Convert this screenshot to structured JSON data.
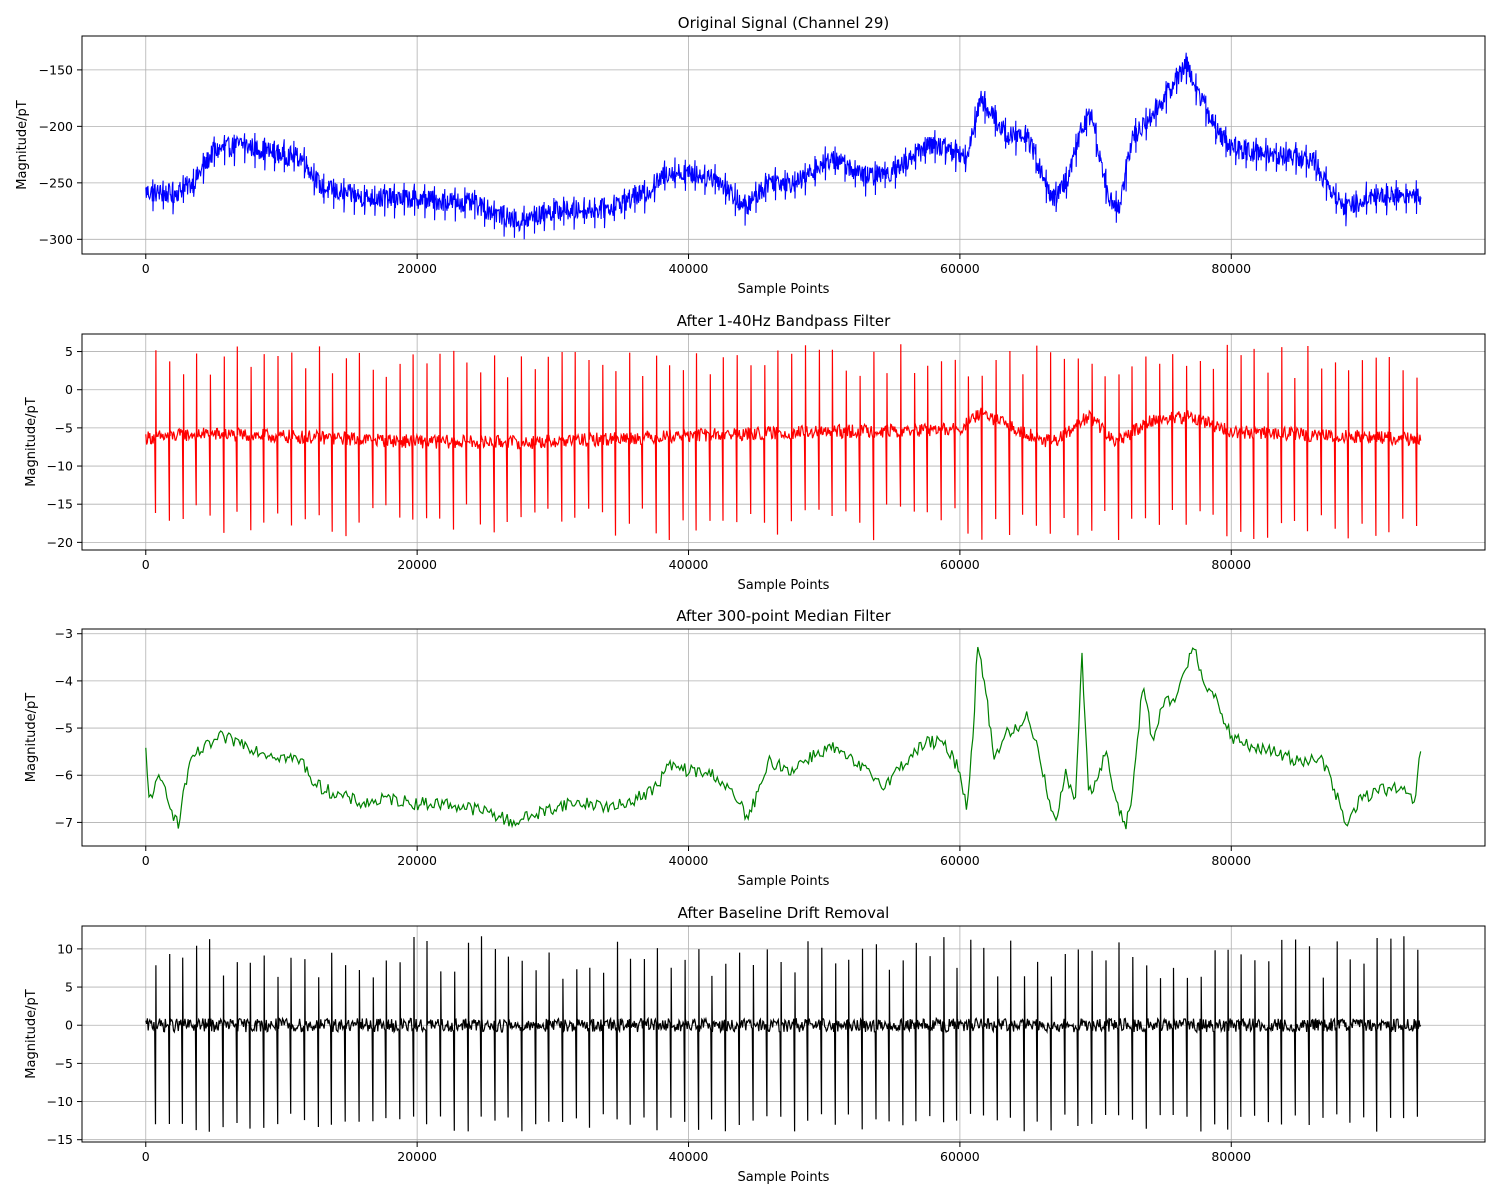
{
  "chart_data": [
    {
      "type": "line",
      "title": "Original Signal (Channel 29)",
      "xlabel": "Sample Points",
      "ylabel": "Magnitude/pT",
      "color": "#0000ff",
      "xlim": [
        -4700,
        98700
      ],
      "ylim": [
        -313,
        -120
      ],
      "xticks": [
        0,
        20000,
        40000,
        60000,
        80000
      ],
      "yticks": [
        -150,
        -200,
        -250,
        -300
      ],
      "ytick_labels": [
        "−150",
        "−200",
        "−250",
        "−300"
      ],
      "grid": true,
      "baseline": {
        "x": [
          0,
          2000,
          3500,
          5000,
          7000,
          10000,
          11500,
          13000,
          16000,
          20000,
          24000,
          27500,
          30000,
          34000,
          37000,
          38500,
          42000,
          44200,
          46000,
          48000,
          50500,
          53000,
          55000,
          58000,
          60500,
          61500,
          63500,
          65000,
          66800,
          68000,
          69000,
          69700,
          71000,
          71800,
          72700,
          74500,
          76700,
          78500,
          80000,
          84000,
          86000,
          87500,
          88500,
          90000,
          94000
        ],
        "y": [
          -258,
          -260,
          -250,
          -222,
          -216,
          -225,
          -228,
          -255,
          -263,
          -264,
          -268,
          -285,
          -275,
          -273,
          -258,
          -240,
          -245,
          -272,
          -248,
          -250,
          -228,
          -245,
          -240,
          -215,
          -228,
          -175,
          -208,
          -210,
          -265,
          -245,
          -200,
          -190,
          -265,
          -270,
          -210,
          -185,
          -145,
          -195,
          -220,
          -226,
          -230,
          -258,
          -273,
          -262,
          -261
        ]
      },
      "noise_amplitude": 9,
      "beat_spacing": 740,
      "spike_up": 14,
      "spike_down": 18
    },
    {
      "type": "line",
      "title": "After 1-40Hz Bandpass Filter",
      "xlabel": "Sample Points",
      "ylabel": "Magnitude/pT",
      "color": "#ff0000",
      "xlim": [
        -4700,
        98700
      ],
      "ylim": [
        -21,
        7.3
      ],
      "xticks": [
        0,
        20000,
        40000,
        60000,
        80000
      ],
      "yticks": [
        5,
        0,
        -5,
        -10,
        -15,
        -20
      ],
      "ytick_labels": [
        "5",
        "0",
        "−5",
        "−10",
        "−15",
        "−20"
      ],
      "grid": true,
      "baseline": {
        "x": [
          0,
          4000,
          12000,
          20000,
          28000,
          40000,
          50000,
          60000,
          61500,
          64000,
          66800,
          69500,
          71500,
          74000,
          77000,
          80000,
          94000
        ],
        "y": [
          -6.3,
          -5.8,
          -6.2,
          -6.8,
          -6.9,
          -6.0,
          -5.5,
          -5.2,
          -3.2,
          -5.0,
          -7.0,
          -3.5,
          -7.0,
          -4.0,
          -3.5,
          -5.5,
          -6.5
        ]
      },
      "noise_amplitude": 0.9,
      "beat_spacing": 1000,
      "spike_peak_range": [
        1.5,
        6
      ],
      "spike_trough_range": [
        -19.7,
        -15
      ]
    },
    {
      "type": "line",
      "title": "After 300-point Median Filter",
      "xlabel": "Sample Points",
      "ylabel": "Magnitude/pT",
      "color": "#008000",
      "xlim": [
        -4700,
        98700
      ],
      "ylim": [
        -7.5,
        -2.9
      ],
      "xticks": [
        0,
        20000,
        40000,
        60000,
        80000
      ],
      "yticks": [
        -3,
        -4,
        -5,
        -6,
        -7
      ],
      "ytick_labels": [
        "−3",
        "−4",
        "−5",
        "−6",
        "−7"
      ],
      "grid": true,
      "x": [
        0,
        200,
        600,
        1000,
        1500,
        2000,
        2400,
        2800,
        3500,
        4500,
        5500,
        7000,
        8500,
        10000,
        11500,
        12500,
        14000,
        16000,
        18000,
        20000,
        22000,
        24000,
        25500,
        27000,
        29000,
        31000,
        33000,
        34500,
        36000,
        37500,
        38500,
        40000,
        42000,
        43500,
        44400,
        45500,
        46000,
        47500,
        49000,
        50500,
        51500,
        53000,
        54500,
        56000,
        57500,
        58200,
        59000,
        60000,
        60500,
        61000,
        61300,
        61800,
        62500,
        63500,
        64500,
        65000,
        65800,
        66500,
        67000,
        67800,
        68500,
        69000,
        69500,
        70000,
        70800,
        71500,
        72200,
        72700,
        73500,
        74200,
        75000,
        75800,
        76500,
        77200,
        78000,
        79000,
        80000,
        81500,
        83000,
        85000,
        86500,
        87500,
        88500,
        89500,
        91000,
        92500,
        93500,
        94000
      ],
      "y": [
        -5.5,
        -6.5,
        -6.3,
        -6.1,
        -6.3,
        -6.8,
        -7.1,
        -6.3,
        -5.6,
        -5.4,
        -5.2,
        -5.3,
        -5.5,
        -5.6,
        -5.7,
        -6.2,
        -6.4,
        -6.6,
        -6.5,
        -6.6,
        -6.6,
        -6.7,
        -6.8,
        -7.0,
        -6.8,
        -6.6,
        -6.6,
        -6.7,
        -6.5,
        -6.3,
        -5.8,
        -5.9,
        -6.0,
        -6.5,
        -6.9,
        -6.1,
        -5.7,
        -5.9,
        -5.6,
        -5.4,
        -5.6,
        -5.9,
        -6.2,
        -5.7,
        -5.3,
        -5.3,
        -5.4,
        -5.9,
        -6.7,
        -5.0,
        -3.2,
        -4.0,
        -5.6,
        -5.1,
        -5.0,
        -4.7,
        -5.5,
        -6.4,
        -7.0,
        -6.0,
        -6.5,
        -3.5,
        -6.3,
        -6.2,
        -5.5,
        -6.6,
        -7.1,
        -6.4,
        -4.0,
        -5.3,
        -4.5,
        -4.4,
        -3.9,
        -3.2,
        -4.0,
        -4.5,
        -5.2,
        -5.4,
        -5.5,
        -5.7,
        -5.6,
        -6.2,
        -7.1,
        -6.5,
        -6.3,
        -6.3,
        -6.6,
        -5.3
      ]
    },
    {
      "type": "line",
      "title": "After Baseline Drift Removal",
      "xlabel": "Sample Points",
      "ylabel": "Magnitude/pT",
      "color": "#000000",
      "xlim": [
        -4700,
        98700
      ],
      "ylim": [
        -15.3,
        13
      ],
      "xticks": [
        0,
        20000,
        40000,
        60000,
        80000
      ],
      "yticks": [
        10,
        5,
        0,
        -5,
        -10,
        -15
      ],
      "ytick_labels": [
        "10",
        "5",
        "0",
        "−5",
        "−10",
        "−15"
      ],
      "grid": true,
      "baseline": {
        "x": [
          0,
          94000
        ],
        "y": [
          0,
          0
        ]
      },
      "noise_amplitude": 0.9,
      "beat_spacing": 1000,
      "spike_peak_range": [
        6,
        11.7
      ],
      "spike_trough_range": [
        -14,
        -11.5
      ]
    }
  ],
  "tick_labels_x": [
    "0",
    "20000",
    "40000",
    "60000",
    "80000"
  ]
}
